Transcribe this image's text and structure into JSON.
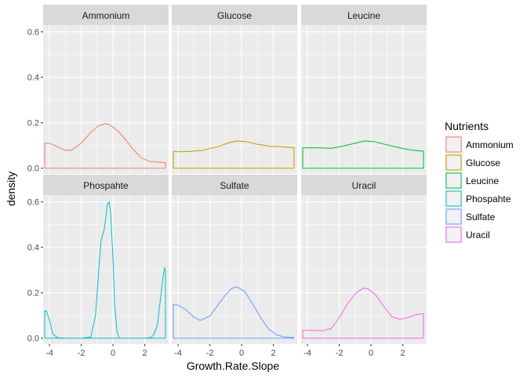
{
  "chart_data": {
    "type": "density",
    "xlabel": "Growth.Rate.Slope",
    "ylabel": "density",
    "xlim": [
      -4.4,
      3.5
    ],
    "ylim": [
      -0.025,
      0.63
    ],
    "x_ticks": [
      -4,
      -2,
      0,
      2
    ],
    "y_ticks": [
      0.0,
      0.2,
      0.4,
      0.6
    ],
    "y_tick_labels": [
      "0.0",
      "0.2",
      "0.4",
      "0.6"
    ],
    "facet_layout": [
      2,
      3
    ],
    "legend": {
      "title": "Nutrients",
      "placement": "right"
    },
    "series": [
      {
        "name": "Ammonium",
        "color": "#F8766D",
        "points": [
          [
            -4.3,
            0
          ],
          [
            -4.3,
            0.11
          ],
          [
            -4.0,
            0.11
          ],
          [
            -3.5,
            0.095
          ],
          [
            -3.0,
            0.078
          ],
          [
            -2.6,
            0.08
          ],
          [
            -2.0,
            0.11
          ],
          [
            -1.5,
            0.15
          ],
          [
            -1.0,
            0.183
          ],
          [
            -0.5,
            0.197
          ],
          [
            -0.2,
            0.19
          ],
          [
            0.3,
            0.165
          ],
          [
            0.8,
            0.125
          ],
          [
            1.3,
            0.08
          ],
          [
            1.8,
            0.045
          ],
          [
            2.3,
            0.03
          ],
          [
            2.8,
            0.027
          ],
          [
            3.3,
            0.025
          ],
          [
            3.3,
            0
          ]
        ]
      },
      {
        "name": "Glucose",
        "color": "#B79F00",
        "points": [
          [
            -4.3,
            0
          ],
          [
            -4.3,
            0.073
          ],
          [
            -3.5,
            0.073
          ],
          [
            -2.5,
            0.078
          ],
          [
            -1.5,
            0.095
          ],
          [
            -0.8,
            0.112
          ],
          [
            -0.3,
            0.12
          ],
          [
            0.3,
            0.117
          ],
          [
            1.0,
            0.105
          ],
          [
            1.8,
            0.097
          ],
          [
            2.5,
            0.095
          ],
          [
            3.3,
            0.09
          ],
          [
            3.3,
            0
          ]
        ]
      },
      {
        "name": "Leucine",
        "color": "#00BA38",
        "points": [
          [
            -4.3,
            0
          ],
          [
            -4.3,
            0.09
          ],
          [
            -3.5,
            0.09
          ],
          [
            -2.5,
            0.088
          ],
          [
            -1.8,
            0.097
          ],
          [
            -1.0,
            0.11
          ],
          [
            -0.4,
            0.12
          ],
          [
            0.2,
            0.117
          ],
          [
            1.0,
            0.103
          ],
          [
            1.8,
            0.09
          ],
          [
            2.5,
            0.08
          ],
          [
            3.3,
            0.075
          ],
          [
            3.3,
            0
          ]
        ]
      },
      {
        "name": "Phospahte",
        "color": "#00BFC4",
        "points": [
          [
            -4.3,
            0
          ],
          [
            -4.3,
            0.12
          ],
          [
            -4.2,
            0.12
          ],
          [
            -4.0,
            0.08
          ],
          [
            -3.8,
            0.02
          ],
          [
            -3.5,
            0.002
          ],
          [
            -3.0,
            0
          ],
          [
            -2.0,
            0
          ],
          [
            -1.4,
            0.005
          ],
          [
            -1.1,
            0.1
          ],
          [
            -0.9,
            0.3
          ],
          [
            -0.75,
            0.43
          ],
          [
            -0.55,
            0.48
          ],
          [
            -0.35,
            0.59
          ],
          [
            -0.25,
            0.6
          ],
          [
            -0.15,
            0.55
          ],
          [
            0.0,
            0.35
          ],
          [
            0.1,
            0.15
          ],
          [
            0.25,
            0.03
          ],
          [
            0.4,
            0
          ],
          [
            2.0,
            0
          ],
          [
            2.4,
            0.003
          ],
          [
            2.6,
            0.02
          ],
          [
            2.8,
            0.06
          ],
          [
            3.0,
            0.18
          ],
          [
            3.15,
            0.27
          ],
          [
            3.25,
            0.31
          ],
          [
            3.3,
            0.3
          ],
          [
            3.3,
            0
          ]
        ]
      },
      {
        "name": "Sulfate",
        "color": "#619CFF",
        "points": [
          [
            -4.3,
            0
          ],
          [
            -4.3,
            0.148
          ],
          [
            -4.0,
            0.145
          ],
          [
            -3.5,
            0.125
          ],
          [
            -3.0,
            0.092
          ],
          [
            -2.6,
            0.078
          ],
          [
            -2.0,
            0.098
          ],
          [
            -1.5,
            0.145
          ],
          [
            -1.0,
            0.192
          ],
          [
            -0.6,
            0.22
          ],
          [
            -0.3,
            0.226
          ],
          [
            0.2,
            0.205
          ],
          [
            0.7,
            0.15
          ],
          [
            1.2,
            0.09
          ],
          [
            1.7,
            0.04
          ],
          [
            2.2,
            0.015
          ],
          [
            2.7,
            0.005
          ],
          [
            3.3,
            0.003
          ],
          [
            3.3,
            0
          ]
        ]
      },
      {
        "name": "Uracil",
        "color": "#F564E3",
        "points": [
          [
            -4.3,
            0
          ],
          [
            -4.3,
            0.035
          ],
          [
            -3.8,
            0.035
          ],
          [
            -3.0,
            0.033
          ],
          [
            -2.5,
            0.043
          ],
          [
            -2.0,
            0.09
          ],
          [
            -1.5,
            0.15
          ],
          [
            -1.0,
            0.195
          ],
          [
            -0.5,
            0.22
          ],
          [
            -0.2,
            0.218
          ],
          [
            0.3,
            0.19
          ],
          [
            0.8,
            0.14
          ],
          [
            1.3,
            0.095
          ],
          [
            1.8,
            0.083
          ],
          [
            2.3,
            0.09
          ],
          [
            2.8,
            0.103
          ],
          [
            3.3,
            0.108
          ],
          [
            3.3,
            0
          ]
        ]
      }
    ]
  }
}
